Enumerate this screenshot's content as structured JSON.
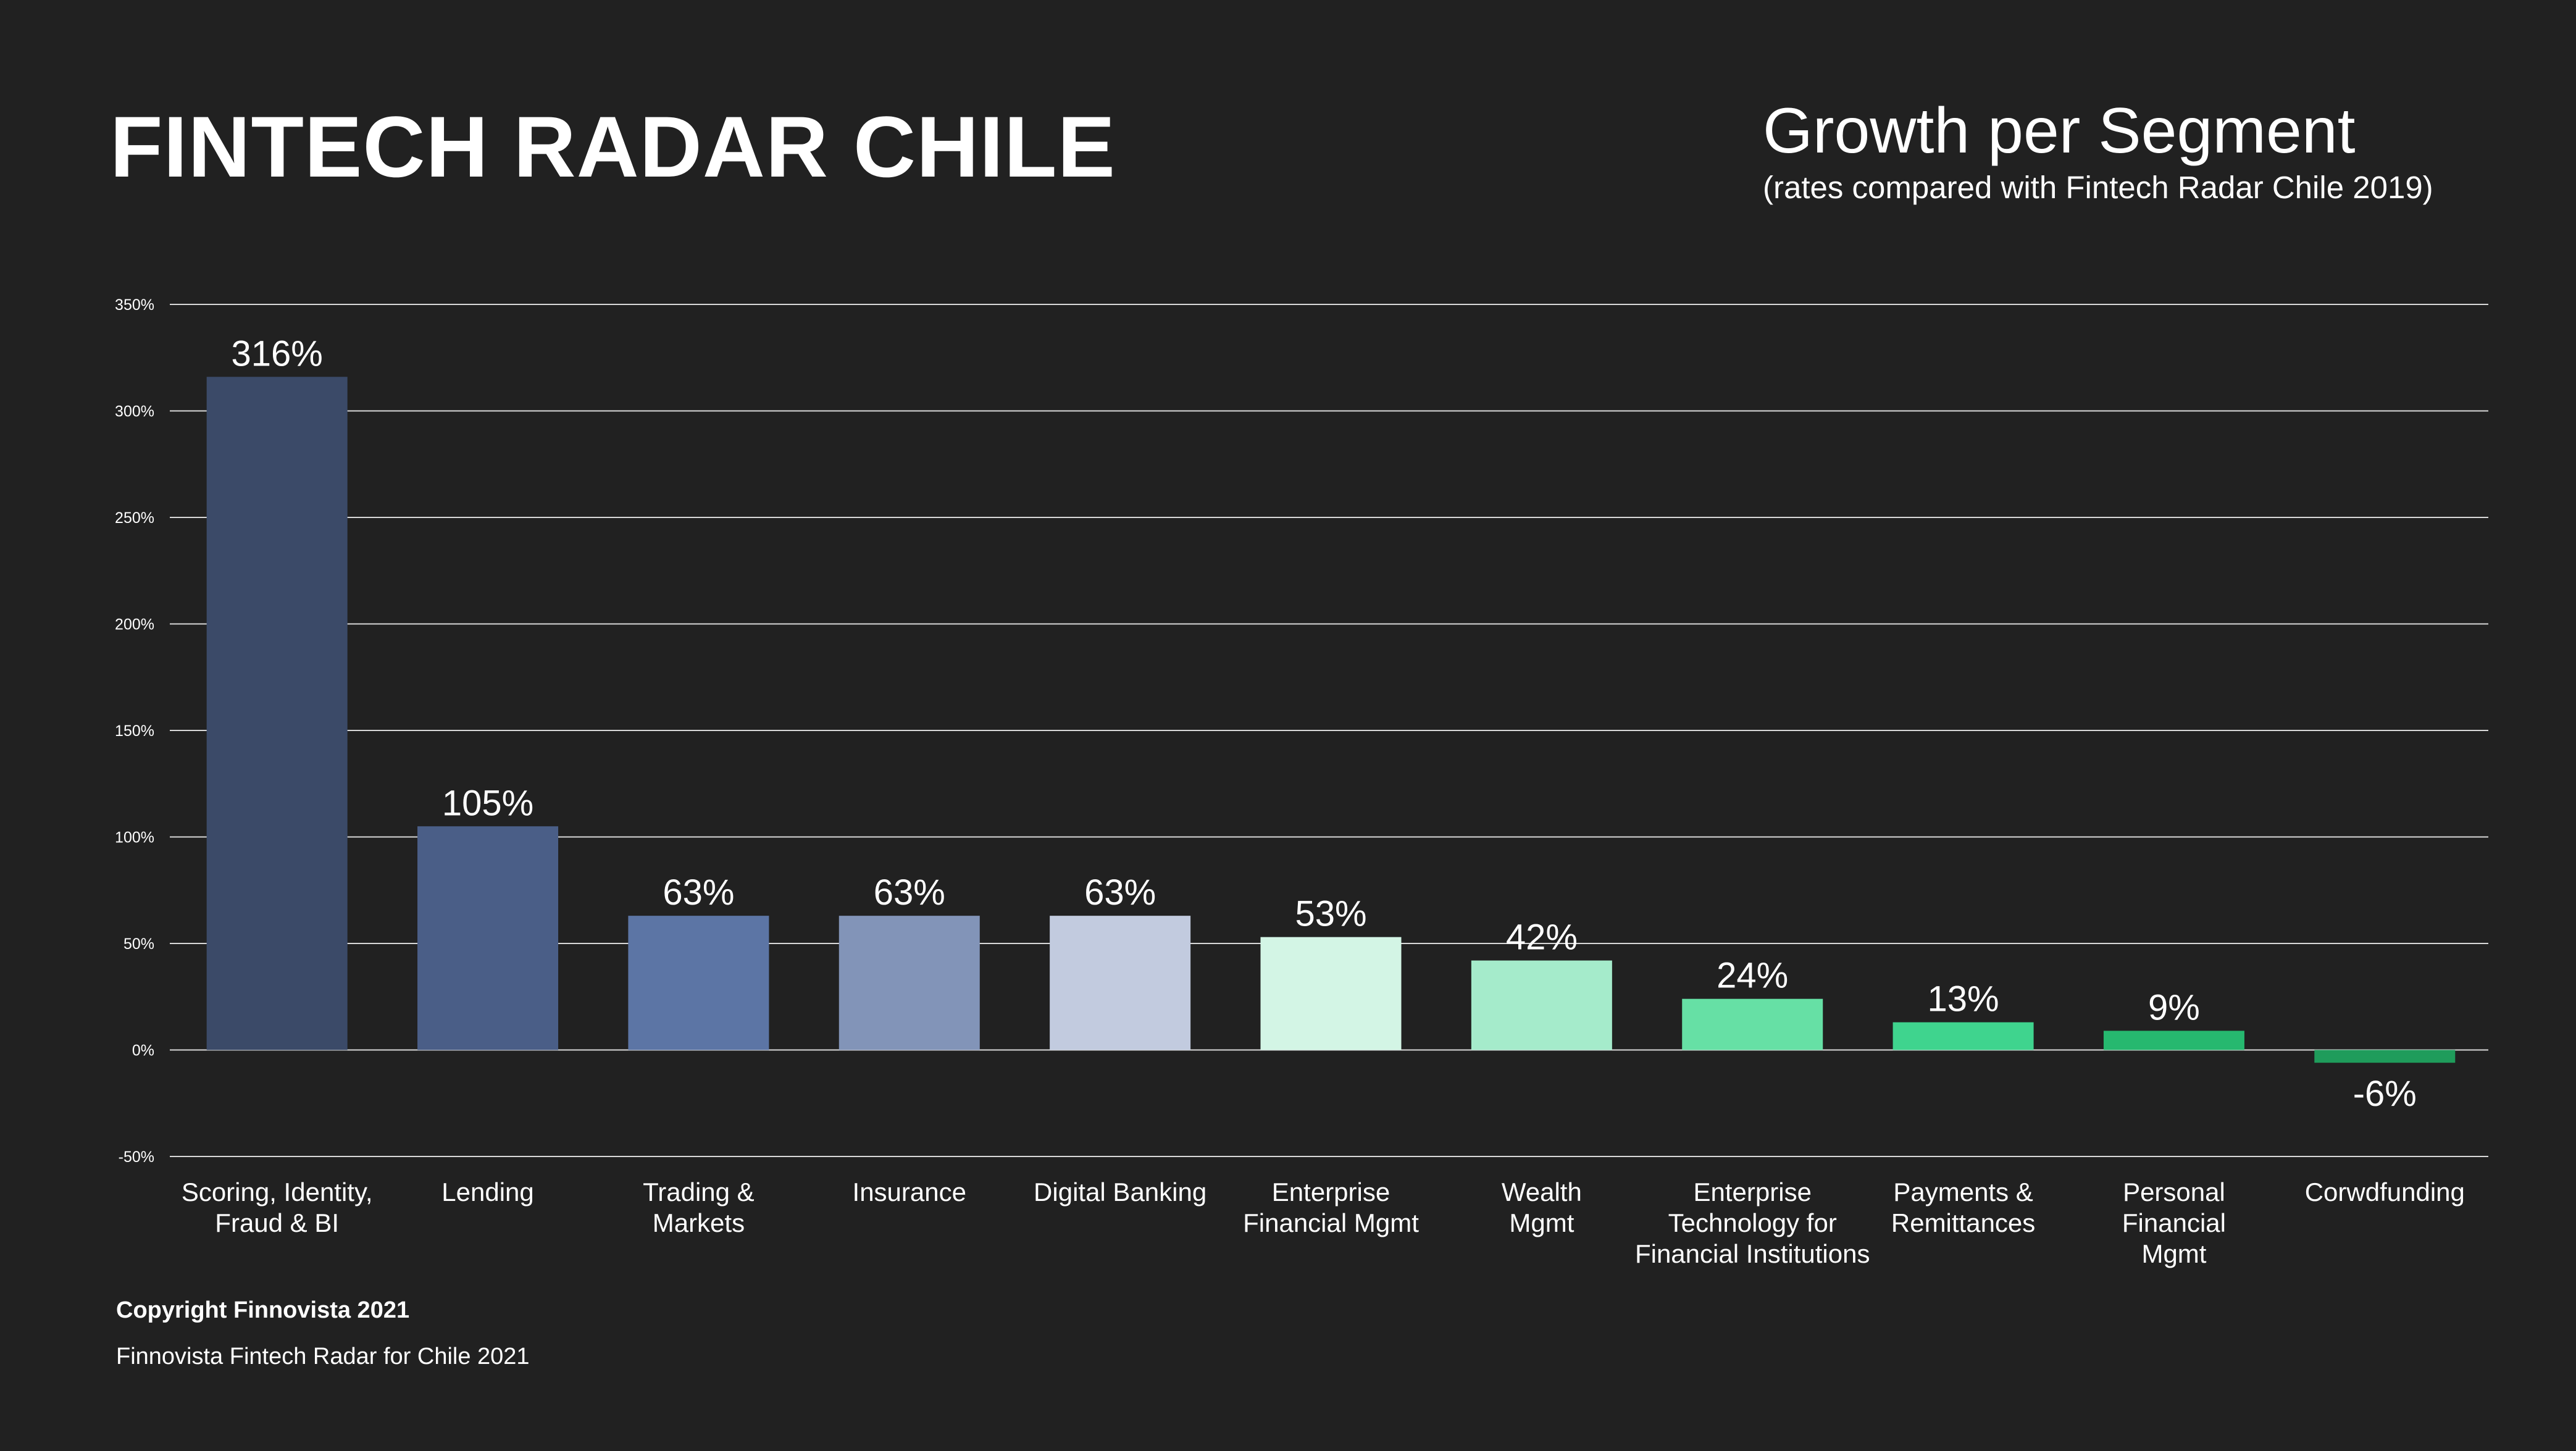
{
  "header": {
    "title": "FINTECH RADAR CHILE",
    "subtitle": "Growth per Segment",
    "subnote": "(rates compared with Fintech Radar Chile 2019)"
  },
  "footer": {
    "copyright": "Copyright Finnovista 2021",
    "source": "Finnovista Fintech Radar for Chile 2021"
  },
  "chart_data": {
    "type": "bar",
    "categories": [
      "Scoring, Identity,\nFraud & BI",
      "Lending",
      "Trading &\nMarkets",
      "Insurance",
      "Digital Banking",
      "Enterprise\nFinancial Mgmt",
      "Wealth\nMgmt",
      "Enterprise\nTechnology for\nFinancial Institutions",
      "Payments &\nRemittances",
      "Personal\nFinancial\nMgmt",
      "Corwdfunding"
    ],
    "values": [
      316,
      105,
      63,
      63,
      63,
      53,
      42,
      24,
      13,
      9,
      -6
    ],
    "data_labels": [
      "316%",
      "105%",
      "63%",
      "63%",
      "63%",
      "53%",
      "42%",
      "24%",
      "13%",
      "9%",
      "-6%"
    ],
    "colors": [
      "#3b4a68",
      "#4a5e87",
      "#5c75a5",
      "#8294b8",
      "#c2cbdf",
      "#d3f5e5",
      "#a5ebcb",
      "#66e0a5",
      "#3fd48e",
      "#26b86f",
      "#1f9c5b"
    ],
    "yticks": [
      -50,
      0,
      50,
      100,
      150,
      200,
      250,
      300,
      350
    ],
    "ytick_labels": [
      "-50%",
      "0%",
      "50%",
      "100%",
      "150%",
      "200%",
      "250%",
      "300%",
      "350%"
    ],
    "ylim": [
      -50,
      350
    ],
    "grid": true,
    "gridline_color": "#d9d9d9"
  }
}
